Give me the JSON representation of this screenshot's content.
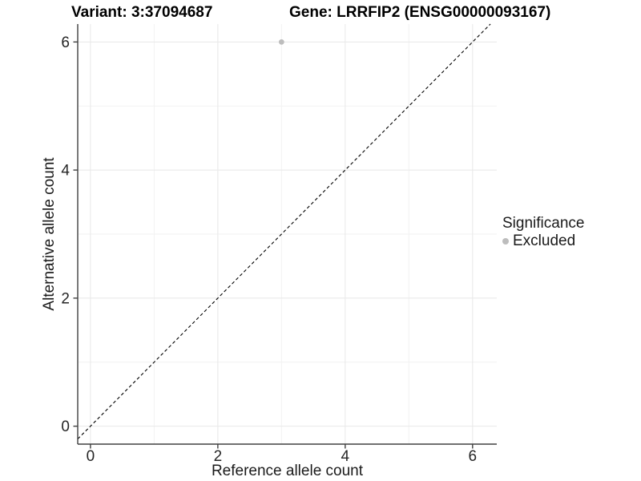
{
  "chart_data": {
    "type": "scatter",
    "titles": [
      "Variant: 3:37094687",
      "Gene: LRRFIP2 (ENSG00000093167)"
    ],
    "xlabel": "Reference allele count",
    "ylabel": "Alternative allele count",
    "xlim": [
      -0.2,
      6.38
    ],
    "ylim": [
      -0.28,
      6.28
    ],
    "xticks": [
      0,
      2,
      4,
      6
    ],
    "yticks": [
      0,
      2,
      4,
      6
    ],
    "minor_xticks": [
      1,
      3,
      5
    ],
    "minor_yticks": [
      1,
      3,
      5
    ],
    "grid": "major+minor",
    "reference_line": {
      "type": "identity y=x",
      "style": "dashed",
      "color": "#000000"
    },
    "series": [
      {
        "name": "Excluded",
        "color": "#bdbdbd",
        "points": [
          {
            "x": 3,
            "y": 6
          }
        ]
      }
    ],
    "legend": {
      "title": "Significance",
      "position": "right",
      "entries": [
        {
          "label": "Excluded",
          "color": "#bdbdbd",
          "marker": "circle"
        }
      ]
    },
    "colors": {
      "background": "#ffffff",
      "grid_major": "#e8e8e8",
      "grid_minor": "#f2f2f2",
      "axis_line": "#404040",
      "tick_label": "#262626"
    }
  }
}
